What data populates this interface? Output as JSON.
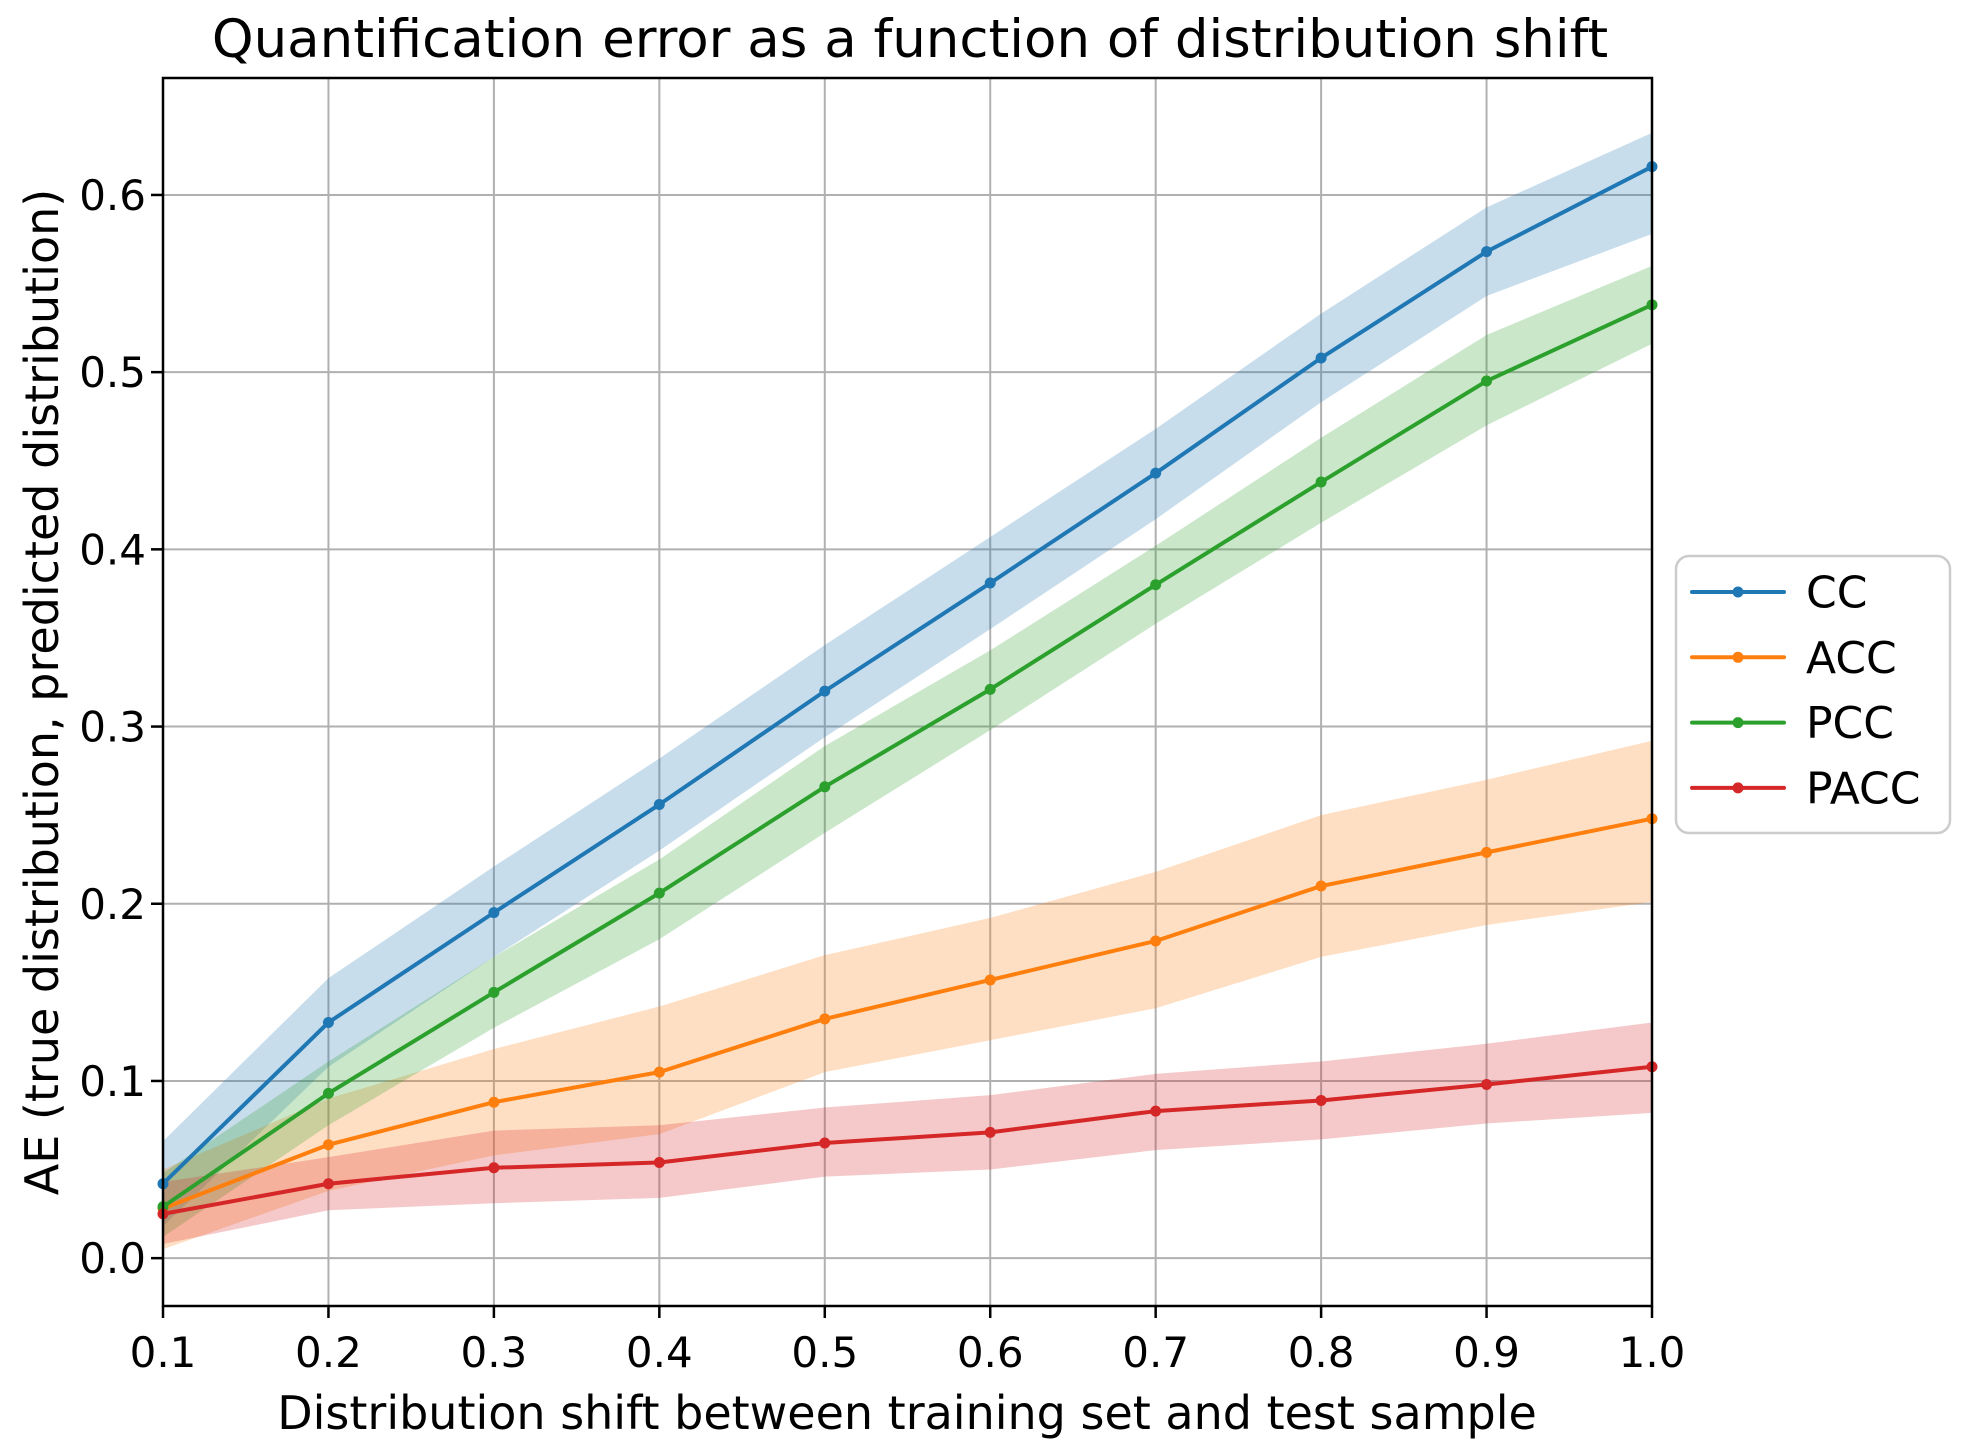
{
  "chart_data": {
    "type": "line",
    "title": "Quantification error as a function of distribution shift",
    "xlabel": "Distribution shift between training set and test sample",
    "ylabel": "AE (true distribution, predicted distribution)",
    "x": [
      0.1,
      0.2,
      0.3,
      0.4,
      0.5,
      0.6,
      0.7,
      0.8,
      0.9,
      1.0
    ],
    "xlim": [
      0.1,
      1.0
    ],
    "ylim": [
      -0.027,
      0.666
    ],
    "xticks": [
      "0.1",
      "0.2",
      "0.3",
      "0.4",
      "0.5",
      "0.6",
      "0.7",
      "0.8",
      "0.9",
      "1.0"
    ],
    "yticks": [
      "0.0",
      "0.1",
      "0.2",
      "0.3",
      "0.4",
      "0.5",
      "0.6"
    ],
    "grid": true,
    "grid_color": "#b0b0b0",
    "spine_color": "#000000",
    "text_color": "#000000",
    "band_alpha": 0.25,
    "legend_position": "right-outside-center",
    "legend_border_color": "#cccccc",
    "series": [
      {
        "name": "CC",
        "color": "#1f77b4",
        "values": [
          0.042,
          0.133,
          0.195,
          0.256,
          0.32,
          0.381,
          0.443,
          0.508,
          0.568,
          0.616
        ],
        "band_lower": [
          0.018,
          0.108,
          0.17,
          0.23,
          0.294,
          0.355,
          0.417,
          0.483,
          0.543,
          0.578
        ],
        "band_upper": [
          0.066,
          0.158,
          0.221,
          0.282,
          0.346,
          0.407,
          0.468,
          0.533,
          0.593,
          0.635
        ]
      },
      {
        "name": "ACC",
        "color": "#ff7f0e",
        "values": [
          0.028,
          0.064,
          0.088,
          0.105,
          0.135,
          0.157,
          0.179,
          0.21,
          0.229,
          0.248
        ],
        "band_lower": [
          0.005,
          0.038,
          0.058,
          0.07,
          0.105,
          0.123,
          0.141,
          0.17,
          0.188,
          0.201
        ],
        "band_upper": [
          0.05,
          0.09,
          0.118,
          0.142,
          0.171,
          0.192,
          0.218,
          0.25,
          0.27,
          0.292
        ]
      },
      {
        "name": "PCC",
        "color": "#2ca02c",
        "values": [
          0.029,
          0.093,
          0.15,
          0.206,
          0.266,
          0.321,
          0.38,
          0.438,
          0.495,
          0.538
        ],
        "band_lower": [
          0.012,
          0.075,
          0.13,
          0.18,
          0.24,
          0.298,
          0.358,
          0.415,
          0.47,
          0.516
        ],
        "band_upper": [
          0.048,
          0.111,
          0.17,
          0.225,
          0.289,
          0.343,
          0.402,
          0.463,
          0.521,
          0.56
        ]
      },
      {
        "name": "PACC",
        "color": "#d62728",
        "values": [
          0.025,
          0.042,
          0.051,
          0.054,
          0.065,
          0.071,
          0.083,
          0.089,
          0.098,
          0.108
        ],
        "band_lower": [
          0.008,
          0.027,
          0.031,
          0.034,
          0.046,
          0.05,
          0.061,
          0.067,
          0.076,
          0.082
        ],
        "band_upper": [
          0.043,
          0.057,
          0.072,
          0.075,
          0.085,
          0.092,
          0.104,
          0.111,
          0.121,
          0.133
        ]
      }
    ]
  }
}
